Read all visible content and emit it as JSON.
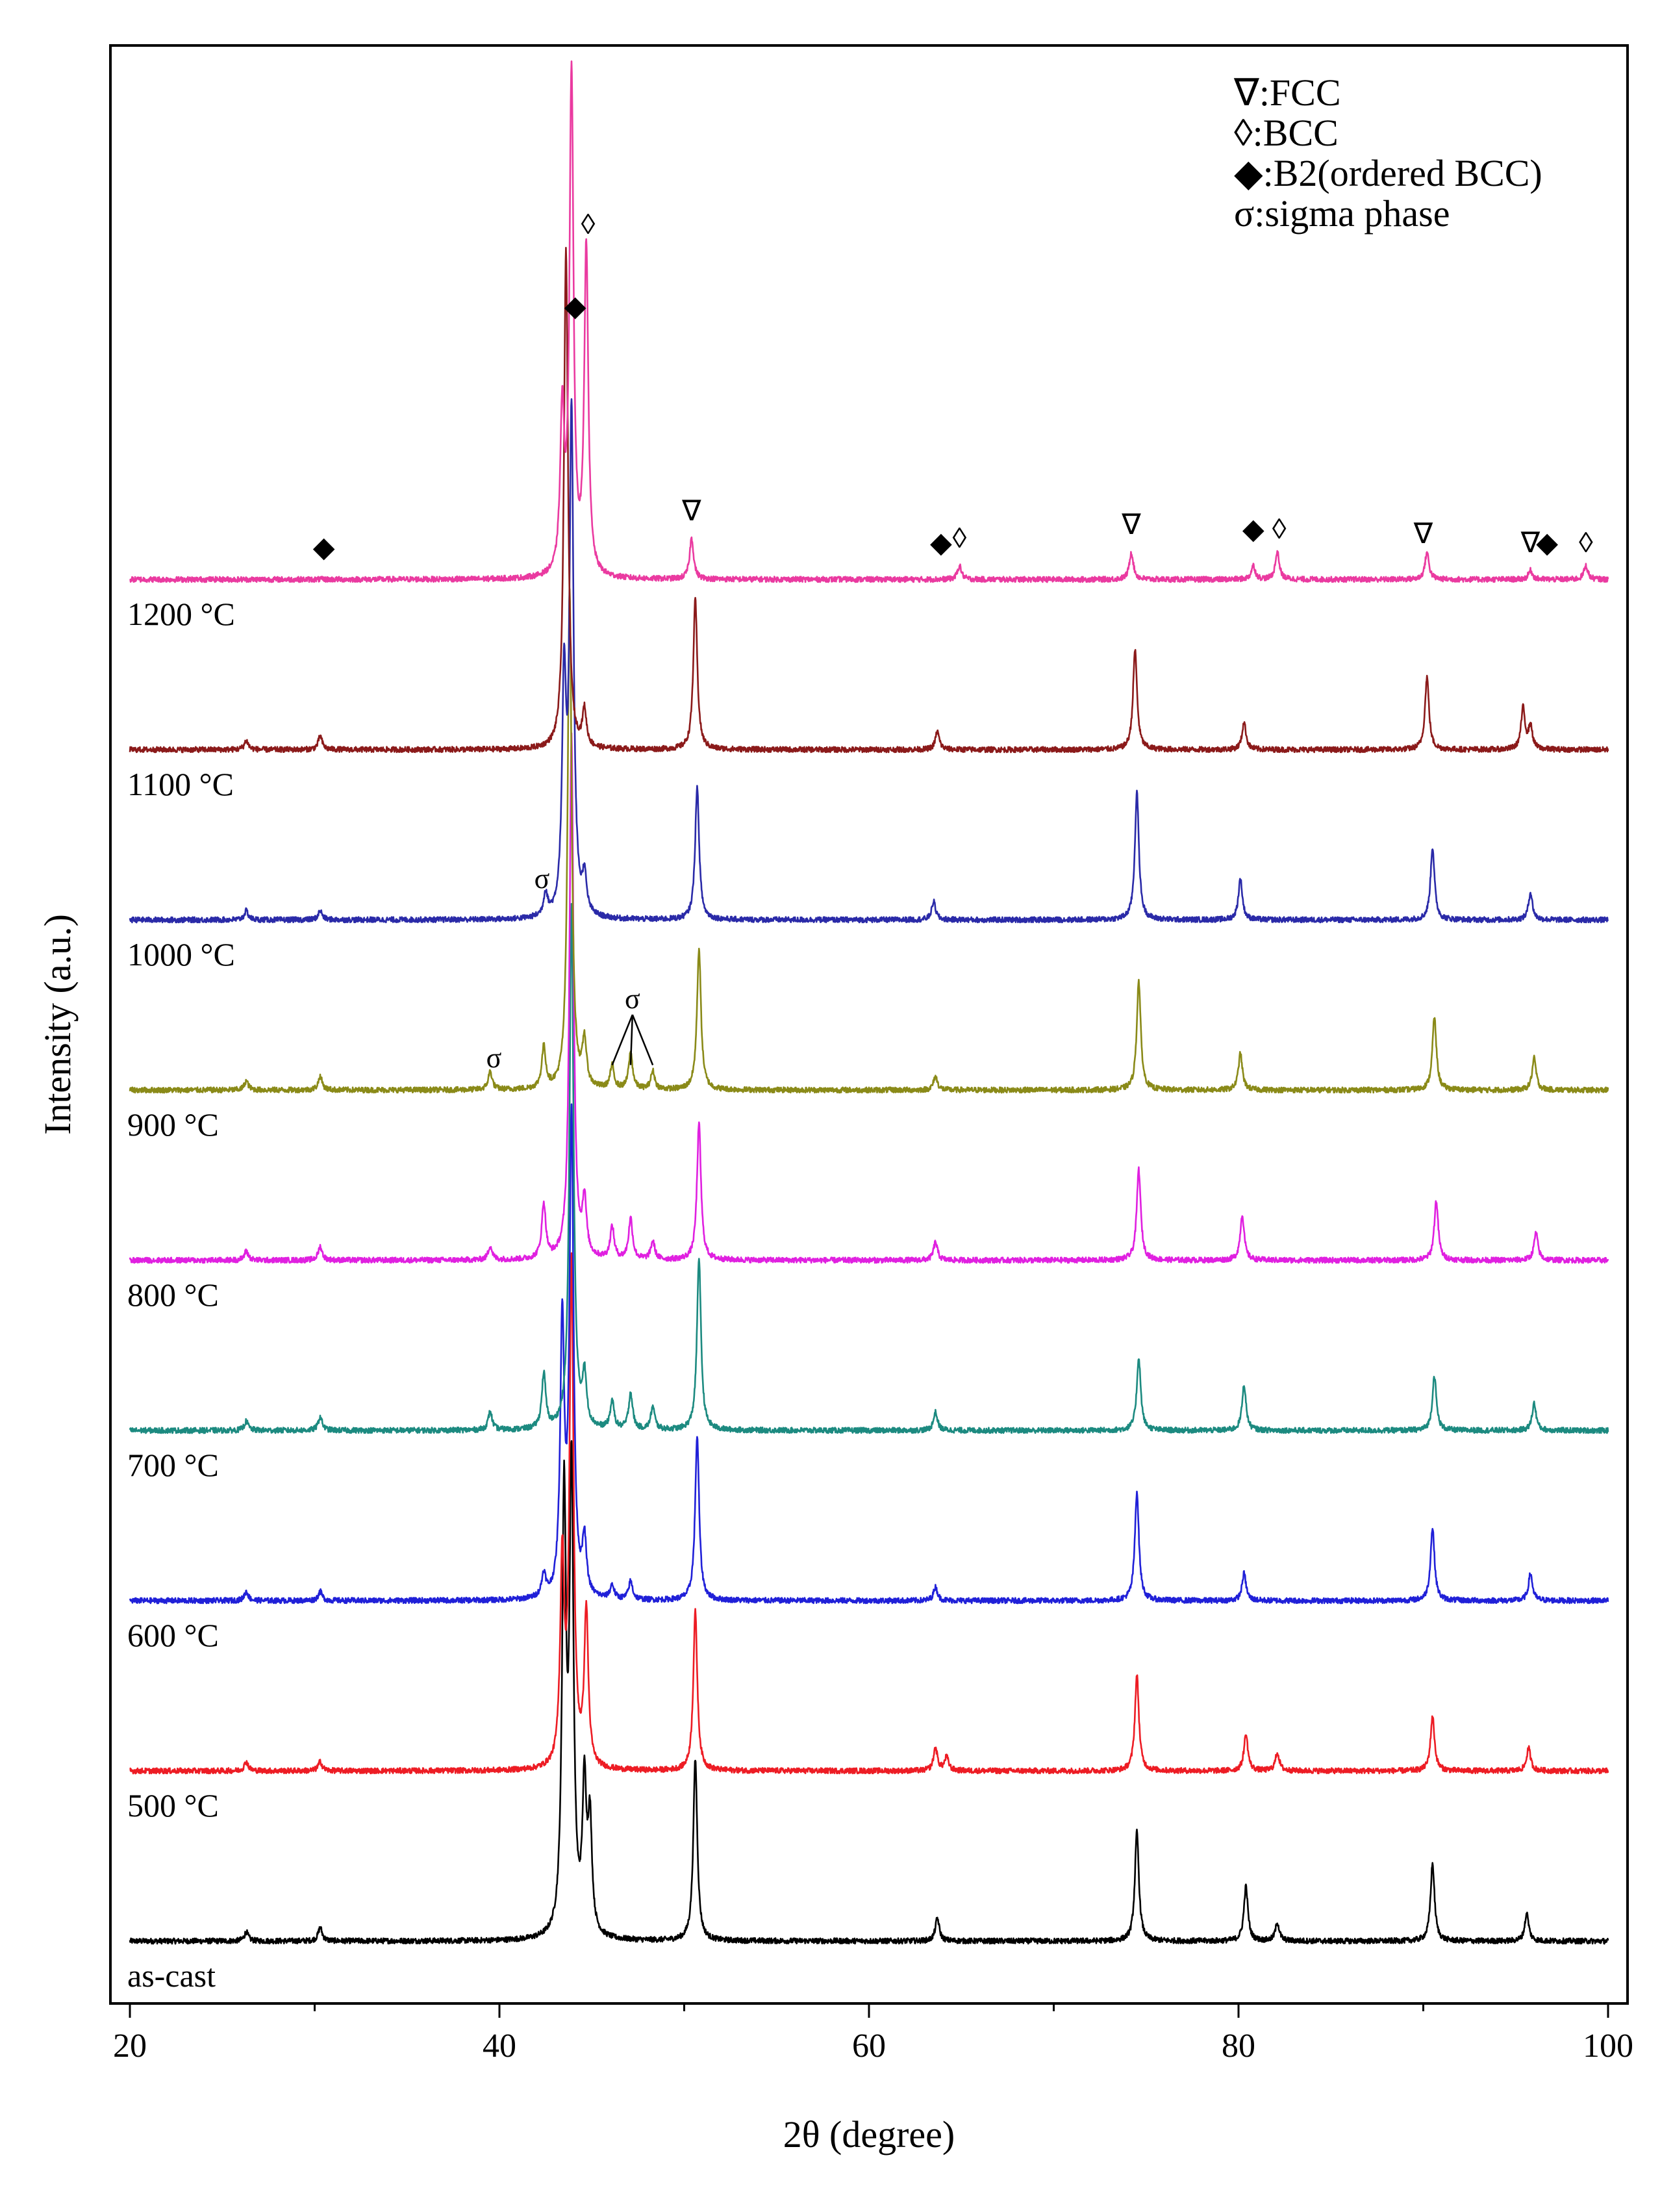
{
  "chart_data": {
    "type": "line",
    "xlabel": "2θ (degree)",
    "ylabel": "Intensity (a.u.)",
    "xlim": [
      20,
      100
    ],
    "xticks": [
      20,
      40,
      60,
      80,
      100
    ],
    "xtick_labels": [
      "20",
      "40",
      "60",
      "80",
      "100"
    ],
    "y_ticks_shown": false,
    "grid": false,
    "legend_position": "top-right",
    "legend": [
      {
        "symbol": "∇",
        "text": ":FCC"
      },
      {
        "symbol": "◊",
        "text": ":BCC"
      },
      {
        "symbol": "◆",
        "text": ":B2(ordered BCC)"
      },
      {
        "symbol": "σ",
        "text": ":sigma phase"
      }
    ],
    "series": [
      {
        "name": "as-cast",
        "color": "#000000",
        "peaks": [
          [
            26.3,
            0.2
          ],
          [
            30.3,
            0.3
          ],
          [
            43.5,
            9.5
          ],
          [
            43.9,
            10.0
          ],
          [
            44.6,
            3.2
          ],
          [
            44.9,
            2.4
          ],
          [
            50.6,
            4.0
          ],
          [
            63.7,
            0.5
          ],
          [
            74.5,
            2.4
          ],
          [
            80.4,
            1.2
          ],
          [
            82.1,
            0.4
          ],
          [
            90.5,
            1.7
          ],
          [
            95.6,
            0.6
          ]
        ]
      },
      {
        "name": "500 °C",
        "color": "#ed1c24",
        "peaks": [
          [
            26.3,
            0.2
          ],
          [
            30.3,
            0.2
          ],
          [
            43.4,
            4.5
          ],
          [
            43.9,
            11.0
          ],
          [
            44.7,
            3.4
          ],
          [
            50.6,
            3.5
          ],
          [
            63.6,
            0.5
          ],
          [
            64.2,
            0.3
          ],
          [
            74.5,
            2.1
          ],
          [
            80.4,
            0.8
          ],
          [
            82.1,
            0.4
          ],
          [
            90.5,
            1.2
          ],
          [
            95.7,
            0.5
          ]
        ]
      },
      {
        "name": "600 °C",
        "color": "#2020d8",
        "peaks": [
          [
            26.3,
            0.2
          ],
          [
            30.3,
            0.2
          ],
          [
            42.4,
            0.5
          ],
          [
            43.4,
            6.0
          ],
          [
            43.9,
            10.5
          ],
          [
            44.6,
            1.2
          ],
          [
            46.1,
            0.3
          ],
          [
            47.1,
            0.4
          ],
          [
            50.7,
            3.6
          ],
          [
            63.6,
            0.3
          ],
          [
            74.5,
            2.4
          ],
          [
            80.3,
            0.6
          ],
          [
            90.5,
            1.6
          ],
          [
            95.8,
            0.6
          ]
        ]
      },
      {
        "name": "700 °C",
        "color": "#1c8a80",
        "peaks": [
          [
            26.3,
            0.2
          ],
          [
            30.3,
            0.3
          ],
          [
            39.5,
            0.4
          ],
          [
            42.4,
            1.2
          ],
          [
            43.9,
            11.5
          ],
          [
            44.6,
            1.1
          ],
          [
            46.1,
            0.6
          ],
          [
            47.1,
            0.8
          ],
          [
            48.3,
            0.5
          ],
          [
            50.8,
            3.8
          ],
          [
            63.6,
            0.4
          ],
          [
            74.6,
            1.6
          ],
          [
            80.3,
            1.0
          ],
          [
            90.6,
            1.2
          ],
          [
            96.0,
            0.6
          ]
        ]
      },
      {
        "name": "800 °C",
        "color": "#e020e0",
        "peaks": [
          [
            26.3,
            0.2
          ],
          [
            30.3,
            0.3
          ],
          [
            39.5,
            0.3
          ],
          [
            42.4,
            1.2
          ],
          [
            43.9,
            11.5
          ],
          [
            44.6,
            1.2
          ],
          [
            46.1,
            0.7
          ],
          [
            47.1,
            0.9
          ],
          [
            48.3,
            0.4
          ],
          [
            50.8,
            3.0
          ],
          [
            63.6,
            0.4
          ],
          [
            74.6,
            2.0
          ],
          [
            80.2,
            1.0
          ],
          [
            90.7,
            1.3
          ],
          [
            96.1,
            0.6
          ]
        ]
      },
      {
        "name": "900 °C",
        "color": "#8a8a18",
        "peaks": [
          [
            26.3,
            0.2
          ],
          [
            30.3,
            0.3
          ],
          [
            39.5,
            0.4
          ],
          [
            42.4,
            0.9
          ],
          [
            43.8,
            11.0
          ],
          [
            44.6,
            1.0
          ],
          [
            46.1,
            0.5
          ],
          [
            47.1,
            0.8
          ],
          [
            48.3,
            0.4
          ],
          [
            50.8,
            3.1
          ],
          [
            63.6,
            0.3
          ],
          [
            74.6,
            2.4
          ],
          [
            80.1,
            0.8
          ],
          [
            90.6,
            1.6
          ],
          [
            96.0,
            0.7
          ]
        ]
      },
      {
        "name": "1000 °C",
        "color": "#2a2aa8",
        "peaks": [
          [
            26.3,
            0.2
          ],
          [
            30.3,
            0.2
          ],
          [
            42.5,
            0.5
          ],
          [
            43.5,
            5.0
          ],
          [
            43.9,
            11.0
          ],
          [
            44.6,
            0.8
          ],
          [
            50.7,
            2.9
          ],
          [
            63.5,
            0.4
          ],
          [
            74.5,
            2.8
          ],
          [
            80.1,
            0.9
          ],
          [
            90.5,
            1.6
          ],
          [
            95.8,
            0.6
          ]
        ]
      },
      {
        "name": "1100 °C",
        "color": "#8b1a1a",
        "peaks": [
          [
            26.3,
            0.2
          ],
          [
            30.3,
            0.3
          ],
          [
            43.6,
            11.0
          ],
          [
            44.6,
            0.8
          ],
          [
            50.6,
            3.3
          ],
          [
            63.7,
            0.4
          ],
          [
            74.4,
            2.2
          ],
          [
            80.3,
            0.6
          ],
          [
            90.2,
            1.6
          ],
          [
            95.4,
            0.9
          ],
          [
            95.8,
            0.5
          ]
        ]
      },
      {
        "name": "1200 °C",
        "color": "#ea3aa0",
        "peaks": [
          [
            43.4,
            3.5
          ],
          [
            43.9,
            11.0
          ],
          [
            44.7,
            7.2
          ],
          [
            50.4,
            0.9
          ],
          [
            64.9,
            0.3
          ],
          [
            74.2,
            0.6
          ],
          [
            80.8,
            0.3
          ],
          [
            82.1,
            0.6
          ],
          [
            90.2,
            0.6
          ],
          [
            95.8,
            0.2
          ],
          [
            98.8,
            0.3
          ]
        ]
      }
    ],
    "annotations": [
      {
        "text": "∇",
        "x": 43.8,
        "series": "1200 °C",
        "rise": 14.0
      },
      {
        "text": "◊",
        "x": 44.8,
        "series": "1200 °C",
        "rise": 7.6
      },
      {
        "text": "◆",
        "x": 44.1,
        "series": "1200 °C",
        "rise": 5.8
      },
      {
        "text": "◆",
        "x": 30.5,
        "series": "1200 °C",
        "rise": 0.5
      },
      {
        "text": "∇",
        "x": 50.4,
        "series": "1200 °C",
        "rise": 1.3
      },
      {
        "text": "◆",
        "x": 63.9,
        "series": "1200 °C",
        "rise": 0.6
      },
      {
        "text": "◊",
        "x": 64.9,
        "series": "1200 °C",
        "rise": 0.7
      },
      {
        "text": "∇",
        "x": 74.2,
        "series": "1200 °C",
        "rise": 1.0
      },
      {
        "text": "◆",
        "x": 80.8,
        "series": "1200 °C",
        "rise": 0.9
      },
      {
        "text": "◊",
        "x": 82.2,
        "series": "1200 °C",
        "rise": 0.9
      },
      {
        "text": "∇",
        "x": 90.0,
        "series": "1200 °C",
        "rise": 0.8
      },
      {
        "text": "∇",
        "x": 95.8,
        "series": "1200 °C",
        "rise": 0.6
      },
      {
        "text": "◆",
        "x": 96.7,
        "series": "1200 °C",
        "rise": 0.6
      },
      {
        "text": "◊",
        "x": 98.8,
        "series": "1200 °C",
        "rise": 0.6
      },
      {
        "text": "σ",
        "x": 42.3,
        "series": "1000 °C",
        "rise": 0.7
      },
      {
        "text": "σ",
        "x": 39.7,
        "series": "900 °C",
        "rise": 0.5
      },
      {
        "text": "σ",
        "x": 47.2,
        "series": "900 °C",
        "rise": 1.8
      }
    ],
    "sigma_pointer_targets": [
      46.1,
      47.1,
      48.3
    ]
  }
}
